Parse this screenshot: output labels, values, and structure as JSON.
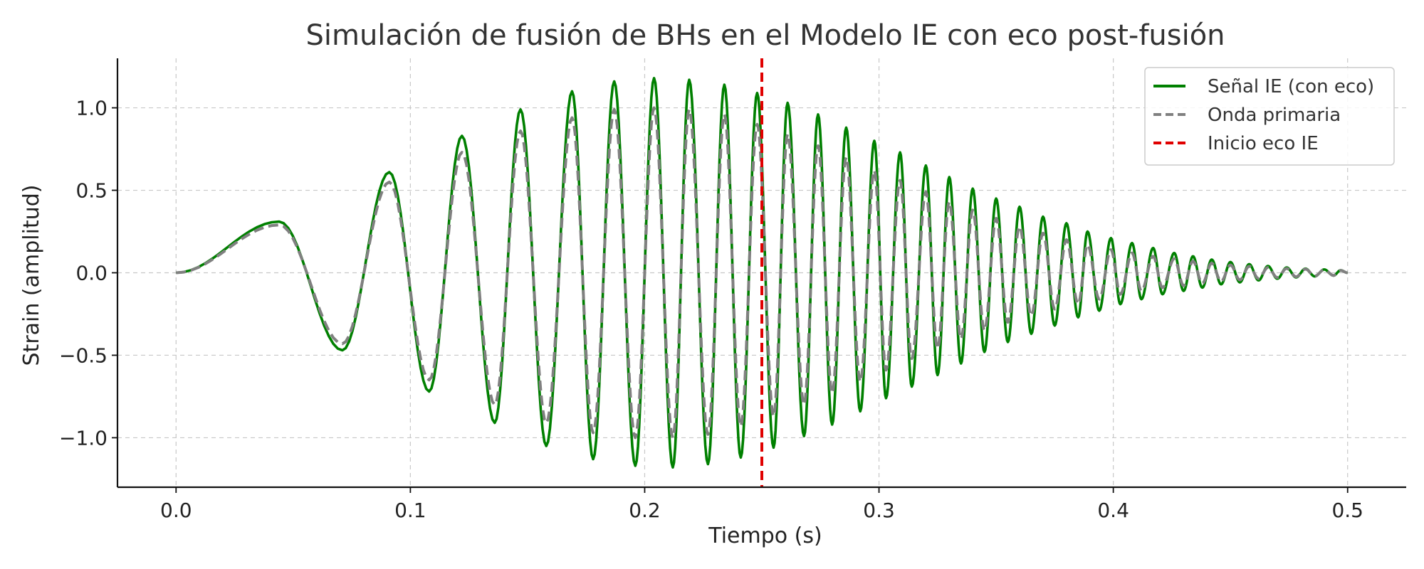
{
  "chart_data": {
    "type": "line",
    "title": "Simulación de fusión de BHs en el Modelo IE con eco post-fusión",
    "xlabel": "Tiempo (s)",
    "ylabel": "Strain (amplitud)",
    "xlim": [
      -0.025,
      0.525
    ],
    "ylim": [
      -1.3,
      1.3
    ],
    "xticks": [
      0.0,
      0.1,
      0.2,
      0.3,
      0.4,
      0.5
    ],
    "xtick_labels": [
      "0.0",
      "0.1",
      "0.2",
      "0.3",
      "0.4",
      "0.5"
    ],
    "yticks": [
      -1.0,
      -0.5,
      0.0,
      0.5,
      1.0
    ],
    "ytick_labels": [
      "−1.0",
      "−0.5",
      "0.0",
      "0.5",
      "1.0"
    ],
    "grid": true,
    "legend_position": "top-right",
    "series": [
      {
        "name": "Señal IE (con eco)",
        "style": "solid",
        "color": "#008000",
        "peaks": [
          {
            "x": 0.0,
            "y": 0.0
          },
          {
            "x": 0.044,
            "y": 0.31
          },
          {
            "x": 0.071,
            "y": -0.47
          },
          {
            "x": 0.091,
            "y": 0.61
          },
          {
            "x": 0.108,
            "y": -0.72
          },
          {
            "x": 0.122,
            "y": 0.83
          },
          {
            "x": 0.136,
            "y": -0.91
          },
          {
            "x": 0.147,
            "y": 0.99
          },
          {
            "x": 0.158,
            "y": -1.05
          },
          {
            "x": 0.169,
            "y": 1.1
          },
          {
            "x": 0.178,
            "y": -1.13
          },
          {
            "x": 0.187,
            "y": 1.16
          },
          {
            "x": 0.196,
            "y": -1.17
          },
          {
            "x": 0.204,
            "y": 1.18
          },
          {
            "x": 0.212,
            "y": -1.18
          },
          {
            "x": 0.219,
            "y": 1.17
          },
          {
            "x": 0.227,
            "y": -1.16
          },
          {
            "x": 0.234,
            "y": 1.14
          },
          {
            "x": 0.241,
            "y": -1.12
          },
          {
            "x": 0.248,
            "y": 1.09
          },
          {
            "x": 0.255,
            "y": -1.06
          },
          {
            "x": 0.261,
            "y": 1.03
          },
          {
            "x": 0.268,
            "y": -0.99
          },
          {
            "x": 0.274,
            "y": 0.96
          },
          {
            "x": 0.28,
            "y": -0.92
          },
          {
            "x": 0.286,
            "y": 0.88
          },
          {
            "x": 0.292,
            "y": -0.84
          },
          {
            "x": 0.298,
            "y": 0.8
          },
          {
            "x": 0.303,
            "y": -0.76
          },
          {
            "x": 0.309,
            "y": 0.73
          },
          {
            "x": 0.314,
            "y": -0.69
          },
          {
            "x": 0.32,
            "y": 0.65
          },
          {
            "x": 0.325,
            "y": -0.62
          },
          {
            "x": 0.33,
            "y": 0.58
          },
          {
            "x": 0.335,
            "y": -0.55
          },
          {
            "x": 0.34,
            "y": 0.51
          },
          {
            "x": 0.345,
            "y": -0.48
          },
          {
            "x": 0.35,
            "y": 0.45
          },
          {
            "x": 0.355,
            "y": -0.42
          },
          {
            "x": 0.36,
            "y": 0.4
          },
          {
            "x": 0.365,
            "y": -0.37
          },
          {
            "x": 0.37,
            "y": 0.34
          },
          {
            "x": 0.375,
            "y": -0.32
          },
          {
            "x": 0.38,
            "y": 0.3
          },
          {
            "x": 0.385,
            "y": -0.27
          },
          {
            "x": 0.389,
            "y": 0.25
          },
          {
            "x": 0.394,
            "y": -0.23
          },
          {
            "x": 0.399,
            "y": 0.21
          },
          {
            "x": 0.403,
            "y": -0.19
          },
          {
            "x": 0.408,
            "y": 0.18
          },
          {
            "x": 0.412,
            "y": -0.16
          },
          {
            "x": 0.417,
            "y": 0.15
          },
          {
            "x": 0.421,
            "y": -0.13
          },
          {
            "x": 0.426,
            "y": 0.12
          },
          {
            "x": 0.43,
            "y": -0.11
          },
          {
            "x": 0.434,
            "y": 0.1
          },
          {
            "x": 0.438,
            "y": -0.09
          },
          {
            "x": 0.442,
            "y": 0.08
          },
          {
            "x": 0.446,
            "y": -0.07
          },
          {
            "x": 0.45,
            "y": 0.065
          },
          {
            "x": 0.454,
            "y": -0.058
          },
          {
            "x": 0.458,
            "y": 0.052
          },
          {
            "x": 0.462,
            "y": -0.046
          },
          {
            "x": 0.466,
            "y": 0.041
          },
          {
            "x": 0.47,
            "y": -0.036
          },
          {
            "x": 0.474,
            "y": 0.032
          },
          {
            "x": 0.478,
            "y": -0.028
          },
          {
            "x": 0.482,
            "y": 0.025
          },
          {
            "x": 0.486,
            "y": -0.022
          },
          {
            "x": 0.49,
            "y": 0.02
          },
          {
            "x": 0.494,
            "y": -0.017
          },
          {
            "x": 0.497,
            "y": 0.015
          },
          {
            "x": 0.5,
            "y": 0.0
          }
        ]
      },
      {
        "name": "Onda primaria",
        "style": "dashed",
        "color": "#808080",
        "peaks": [
          {
            "x": 0.0,
            "y": 0.0
          },
          {
            "x": 0.044,
            "y": 0.29
          },
          {
            "x": 0.071,
            "y": -0.43
          },
          {
            "x": 0.091,
            "y": 0.55
          },
          {
            "x": 0.108,
            "y": -0.65
          },
          {
            "x": 0.122,
            "y": 0.73
          },
          {
            "x": 0.136,
            "y": -0.8
          },
          {
            "x": 0.147,
            "y": 0.86
          },
          {
            "x": 0.158,
            "y": -0.91
          },
          {
            "x": 0.169,
            "y": 0.94
          },
          {
            "x": 0.178,
            "y": -0.97
          },
          {
            "x": 0.187,
            "y": 0.99
          },
          {
            "x": 0.196,
            "y": -1.0
          },
          {
            "x": 0.204,
            "y": 1.0
          },
          {
            "x": 0.212,
            "y": -1.0
          },
          {
            "x": 0.219,
            "y": 0.99
          },
          {
            "x": 0.227,
            "y": -0.98
          },
          {
            "x": 0.234,
            "y": 0.96
          },
          {
            "x": 0.241,
            "y": -0.93
          },
          {
            "x": 0.248,
            "y": 0.9
          },
          {
            "x": 0.255,
            "y": -0.87
          },
          {
            "x": 0.261,
            "y": 0.84
          },
          {
            "x": 0.268,
            "y": -0.8
          },
          {
            "x": 0.274,
            "y": 0.77
          },
          {
            "x": 0.28,
            "y": -0.73
          },
          {
            "x": 0.286,
            "y": 0.7
          },
          {
            "x": 0.292,
            "y": -0.66
          },
          {
            "x": 0.298,
            "y": 0.62
          },
          {
            "x": 0.303,
            "y": -0.59
          },
          {
            "x": 0.309,
            "y": 0.56
          },
          {
            "x": 0.314,
            "y": -0.52
          },
          {
            "x": 0.32,
            "y": 0.49
          },
          {
            "x": 0.325,
            "y": -0.46
          },
          {
            "x": 0.33,
            "y": 0.43
          },
          {
            "x": 0.335,
            "y": -0.4
          },
          {
            "x": 0.34,
            "y": 0.38
          },
          {
            "x": 0.345,
            "y": -0.35
          },
          {
            "x": 0.35,
            "y": 0.33
          },
          {
            "x": 0.355,
            "y": -0.3
          },
          {
            "x": 0.36,
            "y": 0.28
          },
          {
            "x": 0.365,
            "y": -0.26
          },
          {
            "x": 0.37,
            "y": 0.24
          },
          {
            "x": 0.375,
            "y": -0.22
          },
          {
            "x": 0.38,
            "y": 0.2
          },
          {
            "x": 0.385,
            "y": -0.19
          },
          {
            "x": 0.389,
            "y": 0.17
          },
          {
            "x": 0.394,
            "y": -0.16
          },
          {
            "x": 0.399,
            "y": 0.14
          },
          {
            "x": 0.403,
            "y": -0.13
          },
          {
            "x": 0.408,
            "y": 0.12
          },
          {
            "x": 0.412,
            "y": -0.11
          },
          {
            "x": 0.417,
            "y": 0.1
          },
          {
            "x": 0.421,
            "y": -0.09
          },
          {
            "x": 0.426,
            "y": 0.085
          },
          {
            "x": 0.43,
            "y": -0.078
          },
          {
            "x": 0.434,
            "y": 0.07
          },
          {
            "x": 0.438,
            "y": -0.064
          },
          {
            "x": 0.442,
            "y": 0.058
          },
          {
            "x": 0.446,
            "y": -0.052
          },
          {
            "x": 0.45,
            "y": 0.047
          },
          {
            "x": 0.454,
            "y": -0.043
          },
          {
            "x": 0.458,
            "y": 0.039
          },
          {
            "x": 0.462,
            "y": -0.035
          },
          {
            "x": 0.466,
            "y": 0.032
          },
          {
            "x": 0.47,
            "y": -0.029
          },
          {
            "x": 0.474,
            "y": 0.026
          },
          {
            "x": 0.478,
            "y": -0.024
          },
          {
            "x": 0.482,
            "y": 0.022
          },
          {
            "x": 0.486,
            "y": -0.02
          },
          {
            "x": 0.49,
            "y": 0.018
          },
          {
            "x": 0.494,
            "y": -0.016
          },
          {
            "x": 0.497,
            "y": 0.014
          },
          {
            "x": 0.5,
            "y": 0.0
          }
        ]
      }
    ],
    "vlines": [
      {
        "name": "Inicio eco IE",
        "x": 0.25,
        "style": "dashed",
        "color": "#e00000"
      }
    ],
    "legend": [
      {
        "label": "Señal IE (con eco)",
        "style": "solid",
        "color": "#008000"
      },
      {
        "label": "Onda primaria",
        "style": "dashed",
        "color": "#808080"
      },
      {
        "label": "Inicio eco IE",
        "style": "dashed",
        "color": "#e00000"
      }
    ]
  }
}
